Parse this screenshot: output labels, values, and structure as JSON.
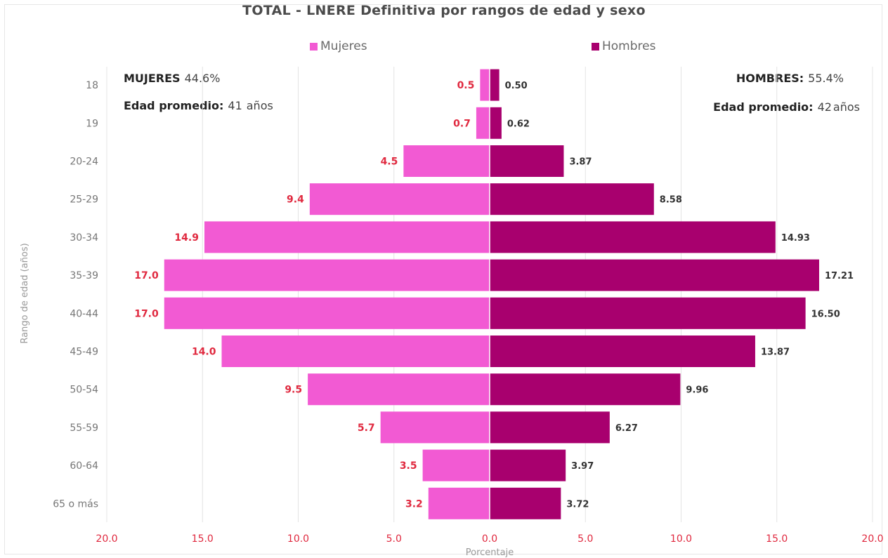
{
  "chart_data": {
    "type": "bar",
    "orientation": "horizontal",
    "title": "TOTAL - LNERE Definitiva por rangos de edad y sexo",
    "ylabel": "Rango de edad (años)",
    "xlabel": "Porcentaje",
    "xlim": [
      -20,
      20
    ],
    "xticks": [
      "20.0",
      "15.0",
      "10.0",
      "5.0",
      "0.0",
      "5.0",
      "10.0",
      "15.0",
      "20.0"
    ],
    "grid": true,
    "legend_position": "top",
    "categories": [
      "18",
      "19",
      "20-24",
      "25-29",
      "30-34",
      "35-39",
      "40-44",
      "45-49",
      "50-54",
      "55-59",
      "60-64",
      "65 o más"
    ],
    "series": [
      {
        "name": "Mujeres",
        "color": "#f25ad3",
        "label_color": "#e0293f",
        "values": [
          0.5,
          0.7,
          4.5,
          9.4,
          14.9,
          17.0,
          17.0,
          14.0,
          9.5,
          5.7,
          3.5,
          3.2
        ],
        "labels": [
          "0.5",
          "0.7",
          "4.5",
          "9.4",
          "14.9",
          "17.0",
          "17.0",
          "14.0",
          "9.5",
          "5.7",
          "3.5",
          "3.2"
        ]
      },
      {
        "name": "Hombres",
        "color": "#a8006e",
        "label_color": "#333333",
        "values": [
          0.5,
          0.62,
          3.87,
          8.58,
          14.93,
          17.21,
          16.5,
          13.87,
          9.96,
          6.27,
          3.97,
          3.72
        ],
        "labels": [
          "0.50",
          "0.62",
          "3.87",
          "8.58",
          "14.93",
          "17.21",
          "16.50",
          "13.87",
          "9.96",
          "6.27",
          "3.97",
          "3.72"
        ]
      }
    ]
  },
  "annotations": {
    "mujeres_label": "MUJERES",
    "mujeres_pct": "44.6%",
    "mujeres_age_label": "Edad promedio:",
    "mujeres_age_value": "41",
    "mujeres_age_unit": "años",
    "hombres_label": "HOMBRES:",
    "hombres_pct": "55.4%",
    "hombres_age_label": "Edad promedio:",
    "hombres_age_value": "42",
    "hombres_age_unit": "años"
  },
  "colors": {
    "tick_x": "#e0293f",
    "tick_y": "#777777",
    "grid": "#e4e4e4"
  }
}
